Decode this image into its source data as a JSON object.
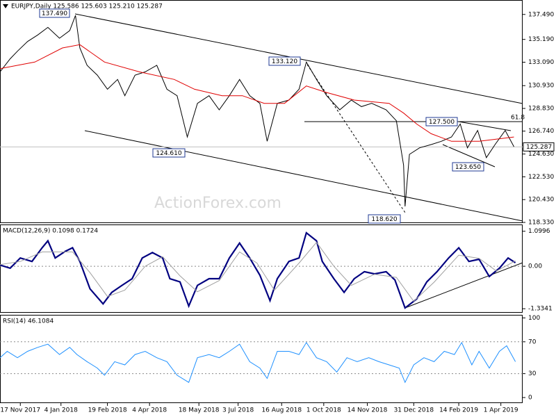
{
  "chart_data": [
    {
      "type": "line",
      "title": "EURJPY,Daily  125.586 125.603 125.210 125.287",
      "watermark": "ActionForex.com",
      "xlim": [
        0,
        360
      ],
      "ylim": [
        118.33,
        138.82
      ],
      "yticks": [
        {
          "value": 137.49,
          "label": "137.490"
        },
        {
          "value": 135.19,
          "label": "135.190"
        },
        {
          "value": 133.09,
          "label": "133.090"
        },
        {
          "value": 130.93,
          "label": "130.930"
        },
        {
          "value": 128.83,
          "label": "128.830"
        },
        {
          "value": 126.74,
          "label": "126.740"
        },
        {
          "value": 124.63,
          "label": "124.630"
        },
        {
          "value": 122.53,
          "label": "122.530"
        },
        {
          "value": 120.43,
          "label": "120.430"
        },
        {
          "value": 118.33,
          "label": "118.330"
        }
      ],
      "last_price": 125.287,
      "annotations": [
        "137.490",
        "133.120",
        "124.610",
        "127.500",
        "123.650",
        "118.620",
        "61.8"
      ],
      "series": [
        {
          "color": "#000000",
          "x": [
            0,
            7,
            12,
            19,
            26,
            33,
            41,
            48,
            52,
            55,
            60,
            67,
            74,
            81,
            86,
            93,
            100,
            108,
            115,
            122,
            129,
            136,
            144,
            151,
            158,
            165,
            172,
            179,
            184,
            191,
            199,
            206,
            211,
            218,
            225,
            234,
            242,
            249,
            256,
            266,
            273,
            278,
            279,
            282,
            289,
            297,
            304,
            311,
            317,
            322,
            329,
            335,
            341,
            348,
            354
          ],
          "values": [
            132.2,
            133.4,
            134.1,
            135.0,
            135.6,
            136.3,
            135.3,
            136.0,
            137.4,
            134.4,
            132.8,
            131.9,
            130.6,
            131.5,
            130.0,
            131.9,
            132.2,
            132.8,
            130.6,
            130.0,
            126.2,
            129.3,
            130.0,
            128.7,
            130.0,
            131.5,
            130.0,
            129.3,
            125.8,
            129.3,
            129.6,
            130.6,
            133.1,
            131.5,
            130.0,
            128.7,
            129.6,
            129.0,
            129.3,
            128.7,
            127.7,
            123.6,
            119.8,
            124.6,
            125.2,
            125.5,
            125.8,
            126.2,
            127.4,
            125.2,
            126.8,
            124.3,
            125.5,
            126.8,
            125.3
          ]
        },
        {
          "color": "#e00000",
          "x": [
            0,
            24,
            43,
            55,
            72,
            96,
            120,
            134,
            153,
            167,
            182,
            196,
            211,
            225,
            244,
            268,
            278,
            287,
            297,
            311,
            330,
            354
          ],
          "values": [
            132.5,
            133.1,
            134.4,
            134.7,
            133.1,
            132.2,
            131.5,
            130.6,
            130.0,
            130.0,
            129.3,
            129.3,
            130.9,
            130.3,
            129.6,
            129.3,
            128.4,
            127.4,
            126.5,
            125.8,
            125.8,
            126.2
          ]
        }
      ]
    },
    {
      "type": "line",
      "title": "MACD(12,26,9) 0.1098 0.1724",
      "xlim": [
        0,
        360
      ],
      "ylim": [
        -1.46,
        1.29
      ],
      "yticks": [
        1.0996,
        {
          "value": 0,
          "label": "0.00"
        },
        -1.3341
      ],
      "levels": [
        0
      ],
      "series": [
        {
          "color": "#000080",
          "x": [
            0,
            7,
            14,
            22,
            29,
            33,
            38,
            45,
            50,
            55,
            62,
            71,
            77,
            84,
            91,
            98,
            105,
            112,
            117,
            124,
            130,
            136,
            144,
            151,
            158,
            165,
            172,
            179,
            186,
            191,
            199,
            206,
            211,
            218,
            222,
            230,
            237,
            244,
            251,
            258,
            266,
            272,
            279,
            287,
            294,
            301,
            309,
            316,
            323,
            330,
            337,
            344,
            350,
            355
          ],
          "values": [
            0.04,
            -0.06,
            0.26,
            0.15,
            0.58,
            0.8,
            0.26,
            0.47,
            0.58,
            0.15,
            -0.71,
            -1.18,
            -0.82,
            -0.6,
            -0.39,
            0.26,
            0.43,
            0.26,
            -0.39,
            -0.49,
            -1.25,
            -0.6,
            -0.39,
            -0.39,
            0.26,
            0.73,
            0.26,
            -0.28,
            -1.08,
            -0.39,
            0.15,
            0.26,
            1.05,
            0.8,
            0.15,
            -0.39,
            -0.82,
            -0.39,
            -0.17,
            -0.24,
            -0.17,
            -0.43,
            -1.31,
            -1.03,
            -0.49,
            -0.17,
            0.26,
            0.58,
            0.15,
            0.22,
            -0.32,
            -0.06,
            0.26,
            0.11
          ]
        },
        {
          "color": "#a0a0a0",
          "x": [
            0,
            14,
            29,
            38,
            50,
            62,
            74,
            86,
            100,
            112,
            124,
            136,
            151,
            165,
            177,
            189,
            206,
            218,
            230,
            242,
            258,
            273,
            285,
            299,
            316,
            330,
            342,
            355
          ],
          "values": [
            0.05,
            0.15,
            0.45,
            0.45,
            0.45,
            -0.2,
            -0.95,
            -0.75,
            0,
            0.3,
            -0.3,
            -0.8,
            -0.45,
            0.45,
            0.1,
            -0.75,
            0.1,
            0.75,
            0,
            -0.6,
            -0.25,
            -0.35,
            -1.1,
            -0.5,
            0.35,
            0.25,
            -0.15,
            0.17
          ]
        }
      ]
    },
    {
      "type": "line",
      "title": "RSI(14) 46.1084",
      "xlim": [
        0,
        360
      ],
      "ylim": [
        -7,
        103
      ],
      "yticks": [
        100,
        70,
        30,
        0
      ],
      "levels": [
        70,
        30
      ],
      "xticks": [
        {
          "value": 14,
          "label": "17 Nov 2017"
        },
        {
          "value": 42,
          "label": "4 Jan 2018"
        },
        {
          "value": 74,
          "label": "19 Feb 2018"
        },
        {
          "value": 103,
          "label": "4 Apr 2018"
        },
        {
          "value": 137,
          "label": "18 May 2018"
        },
        {
          "value": 164,
          "label": "3 Jul 2018"
        },
        {
          "value": 194,
          "label": "16 Aug 2018"
        },
        {
          "value": 223,
          "label": "1 Oct 2018"
        },
        {
          "value": 253,
          "label": "14 Nov 2018"
        },
        {
          "value": 285,
          "label": "31 Dec 2018"
        },
        {
          "value": 316,
          "label": "14 Feb 2019"
        },
        {
          "value": 345,
          "label": "1 Apr 2019"
        }
      ],
      "series": [
        {
          "color": "#1e90ff",
          "x": [
            0,
            5,
            12,
            19,
            26,
            33,
            41,
            48,
            53,
            60,
            67,
            72,
            79,
            86,
            93,
            100,
            108,
            115,
            122,
            130,
            136,
            144,
            151,
            158,
            165,
            172,
            179,
            184,
            191,
            199,
            206,
            211,
            218,
            225,
            232,
            239,
            246,
            254,
            261,
            268,
            275,
            279,
            285,
            292,
            299,
            306,
            313,
            318,
            325,
            330,
            337,
            344,
            349,
            355
          ],
          "values": [
            50,
            58,
            50,
            58,
            63,
            67,
            54,
            63,
            54,
            45,
            37,
            28,
            45,
            41,
            54,
            58,
            50,
            45,
            28,
            19,
            50,
            54,
            50,
            58,
            67,
            45,
            37,
            24,
            58,
            58,
            54,
            69,
            50,
            45,
            32,
            50,
            45,
            50,
            45,
            41,
            37,
            19,
            41,
            50,
            45,
            58,
            54,
            69,
            41,
            58,
            37,
            58,
            65,
            45
          ]
        }
      ]
    }
  ]
}
